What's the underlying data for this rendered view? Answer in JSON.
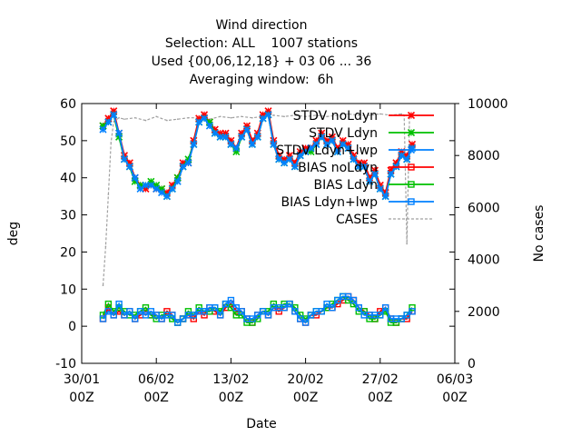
{
  "chart_data": {
    "type": "line",
    "title_lines": [
      "Wind direction",
      "Selection: ALL    1007 stations",
      "Used {00,06,12,18} + 03 06 ... 36",
      "Averaging window:  6h"
    ],
    "xlabel": "Date",
    "ylabel": "deg",
    "y2label": "No cases",
    "x_ticks": [
      {
        "date": "2022-01-30",
        "line1": "30/01",
        "line2": "00Z"
      },
      {
        "date": "2022-02-06",
        "line1": "06/02",
        "line2": "00Z"
      },
      {
        "date": "2022-02-13",
        "line1": "13/02",
        "line2": "00Z"
      },
      {
        "date": "2022-02-20",
        "line1": "20/02",
        "line2": "00Z"
      },
      {
        "date": "2022-02-27",
        "line1": "27/02",
        "line2": "00Z"
      },
      {
        "date": "2022-03-06",
        "line1": "06/03",
        "line2": "00Z"
      }
    ],
    "xlim": [
      "2022-01-30",
      "2022-03-06"
    ],
    "ylim": [
      -10,
      60
    ],
    "y_ticks": [
      -10,
      0,
      10,
      20,
      30,
      40,
      50,
      60
    ],
    "y2lim": [
      0,
      10000
    ],
    "y2_ticks": [
      0,
      2000,
      4000,
      6000,
      8000,
      10000
    ],
    "grid": false,
    "legend_position": "top-right",
    "legend": [
      {
        "name": "STDV noLdyn",
        "color": "#ff0000",
        "marker": "x"
      },
      {
        "name": "STDV Ldyn",
        "color": "#00c000",
        "marker": "x"
      },
      {
        "name": "STDV Ldyn+lwp",
        "color": "#0080ff",
        "marker": "x"
      },
      {
        "name": "BIAS noLdyn",
        "color": "#ff0000",
        "marker": "square"
      },
      {
        "name": "BIAS Ldyn",
        "color": "#00c000",
        "marker": "square"
      },
      {
        "name": "BIAS Ldyn+lwp",
        "color": "#0080ff",
        "marker": "square"
      },
      {
        "name": "CASES",
        "color": "#a0a0a0",
        "marker": "none"
      }
    ],
    "stdv_series": {
      "x": [
        "2022-02-01 00:00",
        "2022-02-01 12:00",
        "2022-02-02 00:00",
        "2022-02-02 12:00",
        "2022-02-03 00:00",
        "2022-02-03 12:00",
        "2022-02-04 00:00",
        "2022-02-04 12:00",
        "2022-02-05 00:00",
        "2022-02-05 12:00",
        "2022-02-06 00:00",
        "2022-02-06 12:00",
        "2022-02-07 00:00",
        "2022-02-07 12:00",
        "2022-02-08 00:00",
        "2022-02-08 12:00",
        "2022-02-09 00:00",
        "2022-02-09 12:00",
        "2022-02-10 00:00",
        "2022-02-10 12:00",
        "2022-02-11 00:00",
        "2022-02-11 12:00",
        "2022-02-12 00:00",
        "2022-02-12 12:00",
        "2022-02-13 00:00",
        "2022-02-13 12:00",
        "2022-02-14 00:00",
        "2022-02-14 12:00",
        "2022-02-15 00:00",
        "2022-02-15 12:00",
        "2022-02-16 00:00",
        "2022-02-16 12:00",
        "2022-02-17 00:00",
        "2022-02-17 12:00",
        "2022-02-18 00:00",
        "2022-02-18 12:00",
        "2022-02-19 00:00",
        "2022-02-19 12:00",
        "2022-02-20 00:00",
        "2022-02-20 12:00",
        "2022-02-21 00:00",
        "2022-02-21 12:00",
        "2022-02-22 00:00",
        "2022-02-22 12:00",
        "2022-02-23 00:00",
        "2022-02-23 12:00",
        "2022-02-24 00:00",
        "2022-02-24 12:00",
        "2022-02-25 00:00",
        "2022-02-25 12:00",
        "2022-02-26 00:00",
        "2022-02-26 12:00",
        "2022-02-27 00:00",
        "2022-02-27 12:00",
        "2022-02-28 00:00",
        "2022-02-28 12:00",
        "2022-03-01 00:00",
        "2022-03-01 12:00",
        "2022-03-02 00:00"
      ],
      "noLdyn": [
        54,
        56,
        58,
        52,
        46,
        44,
        40,
        38,
        37,
        38,
        37,
        37,
        36,
        38,
        40,
        44,
        44,
        50,
        56,
        57,
        55,
        53,
        52,
        52,
        50,
        48,
        52,
        54,
        50,
        52,
        57,
        58,
        50,
        46,
        45,
        46,
        44,
        47,
        48,
        48,
        50,
        52,
        50,
        51,
        48,
        50,
        49,
        46,
        44,
        44,
        40,
        42,
        38,
        36,
        42,
        44,
        47,
        46,
        49
      ],
      "Ldyn": [
        54,
        55,
        57,
        51,
        45,
        43,
        39,
        38,
        38,
        39,
        38,
        37,
        35,
        37,
        40,
        43,
        45,
        49,
        55,
        56,
        55,
        52,
        51,
        51,
        49,
        47,
        51,
        53,
        49,
        51,
        56,
        57,
        49,
        45,
        44,
        45,
        43,
        46,
        47,
        47,
        49,
        51,
        49,
        50,
        47,
        49,
        48,
        45,
        43,
        43,
        39,
        41,
        37,
        35,
        41,
        43,
        46,
        45,
        48
      ],
      "Ldynlwp": [
        53,
        55,
        57,
        52,
        45,
        43,
        40,
        37,
        38,
        38,
        37,
        36,
        35,
        37,
        39,
        43,
        44,
        49,
        55,
        56,
        54,
        52,
        51,
        51,
        49,
        48,
        51,
        53,
        49,
        51,
        56,
        57,
        49,
        45,
        44,
        45,
        43,
        46,
        47,
        48,
        49,
        51,
        49,
        50,
        47,
        49,
        48,
        45,
        43,
        43,
        39,
        41,
        37,
        35,
        41,
        43,
        46,
        45,
        48
      ]
    },
    "bias_series": {
      "x": [
        "2022-02-01 00:00",
        "2022-02-01 12:00",
        "2022-02-02 00:00",
        "2022-02-02 12:00",
        "2022-02-03 00:00",
        "2022-02-03 12:00",
        "2022-02-04 00:00",
        "2022-02-04 12:00",
        "2022-02-05 00:00",
        "2022-02-05 12:00",
        "2022-02-06 00:00",
        "2022-02-06 12:00",
        "2022-02-07 00:00",
        "2022-02-07 12:00",
        "2022-02-08 00:00",
        "2022-02-08 12:00",
        "2022-02-09 00:00",
        "2022-02-09 12:00",
        "2022-02-10 00:00",
        "2022-02-10 12:00",
        "2022-02-11 00:00",
        "2022-02-11 12:00",
        "2022-02-12 00:00",
        "2022-02-12 12:00",
        "2022-02-13 00:00",
        "2022-02-13 12:00",
        "2022-02-14 00:00",
        "2022-02-14 12:00",
        "2022-02-15 00:00",
        "2022-02-15 12:00",
        "2022-02-16 00:00",
        "2022-02-16 12:00",
        "2022-02-17 00:00",
        "2022-02-17 12:00",
        "2022-02-18 00:00",
        "2022-02-18 12:00",
        "2022-02-19 00:00",
        "2022-02-19 12:00",
        "2022-02-20 00:00",
        "2022-02-20 12:00",
        "2022-02-21 00:00",
        "2022-02-21 12:00",
        "2022-02-22 00:00",
        "2022-02-22 12:00",
        "2022-02-23 00:00",
        "2022-02-23 12:00",
        "2022-02-24 00:00",
        "2022-02-24 12:00",
        "2022-02-25 00:00",
        "2022-02-25 12:00",
        "2022-02-26 00:00",
        "2022-02-26 12:00",
        "2022-02-27 00:00",
        "2022-02-27 12:00",
        "2022-02-28 00:00",
        "2022-02-28 12:00",
        "2022-03-01 00:00",
        "2022-03-01 12:00",
        "2022-03-02 00:00"
      ],
      "noLdyn": [
        2,
        5,
        3,
        4,
        3,
        4,
        2,
        3,
        4,
        3,
        3,
        2,
        4,
        3,
        1,
        2,
        3,
        2,
        4,
        3,
        5,
        4,
        3,
        5,
        6,
        4,
        4,
        2,
        1,
        3,
        4,
        3,
        5,
        4,
        5,
        6,
        4,
        2,
        1,
        3,
        3,
        4,
        5,
        5,
        6,
        7,
        8,
        7,
        5,
        4,
        3,
        2,
        4,
        5,
        2,
        1,
        2,
        2,
        4
      ],
      "Ldyn": [
        3,
        6,
        4,
        5,
        4,
        3,
        3,
        4,
        5,
        3,
        2,
        3,
        3,
        2,
        1,
        2,
        4,
        3,
        5,
        4,
        4,
        5,
        4,
        6,
        5,
        3,
        3,
        1,
        1,
        2,
        4,
        4,
        6,
        5,
        6,
        6,
        5,
        3,
        2,
        3,
        4,
        4,
        5,
        6,
        7,
        8,
        7,
        6,
        4,
        4,
        2,
        2,
        3,
        4,
        1,
        1,
        2,
        3,
        5
      ],
      "Ldynlwp": [
        2,
        4,
        3,
        6,
        3,
        4,
        2,
        4,
        3,
        4,
        3,
        2,
        3,
        3,
        1,
        2,
        3,
        3,
        4,
        4,
        5,
        5,
        3,
        6,
        7,
        5,
        4,
        2,
        2,
        3,
        4,
        3,
        5,
        5,
        5,
        6,
        4,
        2,
        1,
        3,
        4,
        4,
        6,
        5,
        7,
        8,
        8,
        7,
        5,
        3,
        3,
        3,
        3,
        5,
        2,
        2,
        2,
        3,
        4
      ]
    },
    "cases_series": {
      "name": "CASES",
      "x": [
        "2022-02-01 00:00",
        "2022-02-01 06:00",
        "2022-02-01 12:00",
        "2022-02-01 18:00",
        "2022-02-02 00:00",
        "2022-02-02 12:00",
        "2022-02-03 00:00",
        "2022-02-04 00:00",
        "2022-02-05 00:00",
        "2022-02-06 00:00",
        "2022-02-07 00:00",
        "2022-02-08 00:00",
        "2022-02-09 00:00",
        "2022-02-10 00:00",
        "2022-02-11 00:00",
        "2022-02-12 00:00",
        "2022-02-13 00:00",
        "2022-02-14 00:00",
        "2022-02-15 00:00",
        "2022-02-16 00:00",
        "2022-02-17 00:00",
        "2022-02-18 00:00",
        "2022-02-19 00:00",
        "2022-02-20 00:00",
        "2022-02-21 00:00",
        "2022-02-22 00:00",
        "2022-02-23 00:00",
        "2022-02-24 00:00",
        "2022-02-25 00:00",
        "2022-02-26 00:00",
        "2022-02-27 00:00",
        "2022-02-28 00:00",
        "2022-03-01 00:00",
        "2022-03-01 06:00",
        "2022-03-01 12:00",
        "2022-03-01 18:00",
        "2022-03-02 00:00"
      ],
      "values": [
        3000,
        4500,
        6500,
        8500,
        9300,
        9450,
        9400,
        9450,
        9350,
        9500,
        9350,
        9400,
        9450,
        9450,
        9400,
        9500,
        9450,
        9500,
        9450,
        9500,
        9550,
        9500,
        9550,
        9500,
        9550,
        9500,
        9550,
        9600,
        9550,
        9550,
        9600,
        9550,
        9600,
        9550,
        4600,
        9500,
        9550
      ]
    }
  }
}
